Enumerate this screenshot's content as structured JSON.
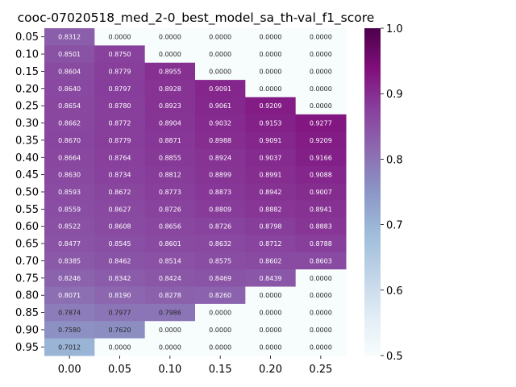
{
  "chart_data": {
    "type": "heatmap",
    "title": "cooc-07020518_med_2-0_best_model_sa_th-val_f1_score",
    "xlabel": "",
    "ylabel": "",
    "x_categories": [
      "0.00",
      "0.05",
      "0.10",
      "0.15",
      "0.20",
      "0.25"
    ],
    "y_categories": [
      "0.05",
      "0.10",
      "0.15",
      "0.20",
      "0.25",
      "0.30",
      "0.35",
      "0.40",
      "0.45",
      "0.50",
      "0.55",
      "0.60",
      "0.65",
      "0.70",
      "0.75",
      "0.80",
      "0.85",
      "0.90",
      "0.95"
    ],
    "values": [
      [
        "0.8312",
        "0.0000",
        "0.0000",
        "0.0000",
        "0.0000",
        "0.0000"
      ],
      [
        "0.8501",
        "0.8750",
        "0.0000",
        "0.0000",
        "0.0000",
        "0.0000"
      ],
      [
        "0.8604",
        "0.8779",
        "0.8955",
        "0.0000",
        "0.0000",
        "0.0000"
      ],
      [
        "0.8640",
        "0.8797",
        "0.8928",
        "0.9091",
        "0.0000",
        "0.0000"
      ],
      [
        "0.8654",
        "0.8780",
        "0.8923",
        "0.9061",
        "0.9209",
        "0.0000"
      ],
      [
        "0.8662",
        "0.8772",
        "0.8904",
        "0.9032",
        "0.9153",
        "0.9277"
      ],
      [
        "0.8670",
        "0.8779",
        "0.8871",
        "0.8988",
        "0.9091",
        "0.9209"
      ],
      [
        "0.8664",
        "0.8764",
        "0.8855",
        "0.8924",
        "0.9037",
        "0.9166"
      ],
      [
        "0.8630",
        "0.8734",
        "0.8812",
        "0.8899",
        "0.8991",
        "0.9088"
      ],
      [
        "0.8593",
        "0.8672",
        "0.8773",
        "0.8873",
        "0.8942",
        "0.9007"
      ],
      [
        "0.8559",
        "0.8627",
        "0.8726",
        "0.8809",
        "0.8882",
        "0.8941"
      ],
      [
        "0.8522",
        "0.8608",
        "0.8656",
        "0.8726",
        "0.8798",
        "0.8883"
      ],
      [
        "0.8477",
        "0.8545",
        "0.8601",
        "0.8632",
        "0.8712",
        "0.8788"
      ],
      [
        "0.8385",
        "0.8462",
        "0.8514",
        "0.8575",
        "0.8602",
        "0.8603"
      ],
      [
        "0.8246",
        "0.8342",
        "0.8424",
        "0.8469",
        "0.8439",
        "0.0000"
      ],
      [
        "0.8071",
        "0.8190",
        "0.8278",
        "0.8260",
        "0.0000",
        "0.0000"
      ],
      [
        "0.7874",
        "0.7977",
        "0.7986",
        "0.0000",
        "0.0000",
        "0.0000"
      ],
      [
        "0.7580",
        "0.7620",
        "0.0000",
        "0.0000",
        "0.0000",
        "0.0000"
      ],
      [
        "0.7012",
        "0.0000",
        "0.0000",
        "0.0000",
        "0.0000",
        "0.0000"
      ]
    ],
    "colorbar": {
      "vmin": 0.5,
      "vmax": 1.0,
      "ticks": [
        "0.5",
        "0.6",
        "0.7",
        "0.8",
        "0.9",
        "1.0"
      ],
      "colormap": "BuPu",
      "colors": [
        "#f7fcfd",
        "#e0ecf4",
        "#bfd3e6",
        "#9ebcda",
        "#8c96c6",
        "#8c6bb1",
        "#88419d",
        "#810f7c",
        "#4d004b"
      ]
    },
    "grid": false
  }
}
